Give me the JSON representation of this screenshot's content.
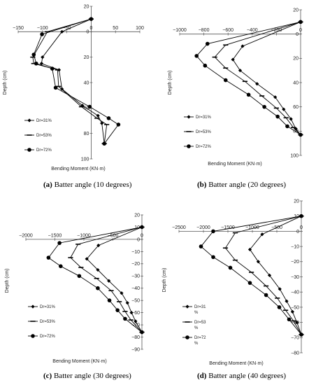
{
  "chart_data": [
    {
      "type": "line",
      "panel_letter": "(a)",
      "caption": "Batter angle (10 degrees)",
      "xlabel": "Bending Moment (KN·m)",
      "ylabel": "Depth (cm)",
      "xlim": [
        -150,
        100
      ],
      "ylim": [
        20,
        -100
      ],
      "xticks": [
        -150,
        -100,
        -50,
        0,
        50,
        100
      ],
      "yticks": [
        20,
        0,
        -20,
        -40,
        -60,
        -80,
        -100
      ],
      "xtick_labels": [
        "−150",
        "−100",
        "−50",
        "0",
        "50",
        "100"
      ],
      "ytick_labels": [
        "20",
        "0",
        "20",
        "40",
        "60",
        "80",
        "100"
      ],
      "legend_position": "bottom-left",
      "series": [
        {
          "name": "Dr=31%",
          "marker": "diamond",
          "x": [
            0,
            -60,
            -100,
            -102,
            -66,
            -60,
            -18,
            14,
            22,
            27
          ],
          "y": [
            10,
            0,
            -20,
            -25,
            -30,
            -45,
            -58,
            -66,
            -72,
            -88
          ]
        },
        {
          "name": "Dr=53%",
          "marker": "dash",
          "x": [
            0,
            -90,
            -120,
            -118,
            -69,
            -67,
            -20,
            12,
            32,
            27
          ],
          "y": [
            10,
            0,
            -20,
            -25,
            -30,
            -43,
            -59,
            -68,
            -73,
            -88
          ]
        },
        {
          "name": "Dr=72%",
          "marker": "circle",
          "x": [
            0,
            -101,
            -118,
            -113,
            -80,
            -73,
            -3,
            36,
            56,
            27
          ],
          "y": [
            10,
            -2,
            -18,
            -25,
            -29,
            -44,
            -59,
            -68,
            -73,
            -88
          ]
        }
      ]
    },
    {
      "type": "line",
      "panel_letter": "(b)",
      "caption": "Batter angle (20 degrees)",
      "xlabel": "Bending Moment (KN·m)",
      "ylabel": "Depth (cm)",
      "xlim": [
        -1000,
        0
      ],
      "ylim": [
        20,
        -100
      ],
      "xticks": [
        -1000,
        -800,
        -600,
        -400,
        -200,
        0
      ],
      "yticks": [
        20,
        0,
        -20,
        -40,
        -60,
        -80,
        -100
      ],
      "xtick_labels": [
        "−1000",
        "−800",
        "−600",
        "−400",
        "−200",
        "0"
      ],
      "ytick_labels": [
        "20",
        "0",
        "20",
        "40",
        "60",
        "80",
        "100"
      ],
      "legend_position": "bottom-left",
      "series": [
        {
          "name": "Dr=31%",
          "marker": "diamond",
          "x": [
            0,
            -480,
            -560,
            -500,
            -360,
            -210,
            -140,
            -80,
            -40,
            0
          ],
          "y": [
            10,
            -10,
            -21,
            -30,
            -41,
            -52,
            -62,
            -70,
            -78,
            -83
          ]
        },
        {
          "name": "Dr=53%",
          "marker": "dash",
          "x": [
            0,
            -620,
            -710,
            -620,
            -460,
            -320,
            -200,
            -120,
            -60,
            0
          ],
          "y": [
            10,
            -9,
            -19,
            -28,
            -39,
            -51,
            -61,
            -69,
            -77,
            -83
          ]
        },
        {
          "name": "Dr=72%",
          "marker": "circle",
          "x": [
            0,
            -770,
            -860,
            -790,
            -620,
            -430,
            -300,
            -190,
            -110,
            0
          ],
          "y": [
            10,
            -8,
            -18,
            -26,
            -38,
            -50,
            -60,
            -68,
            -76,
            -83
          ]
        }
      ]
    },
    {
      "type": "line",
      "panel_letter": "(c)",
      "caption": "Batter angle (30 degrees)",
      "xlabel": "Bending Moment (KN·m)",
      "ylabel": "Depth (cm)",
      "xlim": [
        -2000,
        0
      ],
      "ylim": [
        20,
        -90
      ],
      "xticks": [
        -2000,
        -1500,
        -1000,
        -500,
        0
      ],
      "yticks": [
        20,
        10,
        0,
        -10,
        -20,
        -30,
        -40,
        -50,
        -60,
        -70,
        -80,
        -90
      ],
      "xtick_labels": [
        "−2000",
        "−1500",
        "−1000",
        "−500",
        "0"
      ],
      "ytick_labels": [
        "20",
        "10",
        "0",
        "−10",
        "−20",
        "−30",
        "−40",
        "−50",
        "−60",
        "−70",
        "−80",
        "−90"
      ],
      "legend_position": "bottom-left",
      "series": [
        {
          "name": "Dr=31%",
          "marker": "diamond",
          "x": [
            0,
            -750,
            -950,
            -760,
            -570,
            -350,
            -250,
            -180,
            -110,
            0
          ],
          "y": [
            10,
            -5,
            -16,
            -25,
            -34,
            -44,
            -52,
            -60,
            -67,
            -76
          ]
        },
        {
          "name": "Dr=53%",
          "marker": "dash",
          "x": [
            0,
            -1100,
            -1230,
            -1050,
            -780,
            -530,
            -390,
            -290,
            -190,
            0
          ],
          "y": [
            10,
            -4,
            -15,
            -23,
            -32,
            -42,
            -51,
            -59,
            -66,
            -76
          ]
        },
        {
          "name": "Dr=72%",
          "marker": "circle",
          "x": [
            0,
            -1420,
            -1610,
            -1400,
            -1080,
            -760,
            -560,
            -420,
            -290,
            0
          ],
          "y": [
            10,
            -3,
            -15,
            -22,
            -30,
            -40,
            -50,
            -58,
            -65,
            -76
          ]
        }
      ]
    },
    {
      "type": "line",
      "panel_letter": "(d)",
      "caption": "Batter angle (40 degrees)",
      "xlabel": "Bending Moment (KN·m)",
      "ylabel": "Depth (cm)",
      "xlim": [
        -2500,
        0
      ],
      "ylim": [
        20,
        -80
      ],
      "xticks": [
        -2500,
        -2000,
        -1500,
        -1000,
        -500,
        0
      ],
      "yticks": [
        20,
        10,
        0,
        -10,
        -20,
        -30,
        -40,
        -50,
        -60,
        -70,
        -80
      ],
      "xtick_labels": [
        "−2500",
        "−2000",
        "−1500",
        "−1000",
        "−500",
        "0"
      ],
      "ytick_labels": [
        "20",
        "10",
        "0",
        "−10",
        "−20",
        "−30",
        "−40",
        "−50",
        "−60",
        "−70",
        "−80"
      ],
      "legend_position": "bottom-left",
      "series": [
        {
          "name": "Dr=31\n%",
          "marker": "diamond",
          "x": [
            0,
            -800,
            -1050,
            -880,
            -650,
            -440,
            -300,
            -180,
            -90,
            0
          ],
          "y": [
            10,
            -2,
            -12,
            -20,
            -29,
            -38,
            -46,
            -53,
            -60,
            -68
          ]
        },
        {
          "name": "Dr=53\n%",
          "marker": "dash",
          "x": [
            0,
            -1350,
            -1550,
            -1350,
            -1020,
            -720,
            -490,
            -320,
            -160,
            0
          ],
          "y": [
            10,
            -1,
            -11,
            -19,
            -27,
            -36,
            -44,
            -52,
            -59,
            -68
          ]
        },
        {
          "name": "Dr=72\n%",
          "marker": "circle",
          "x": [
            0,
            -1800,
            -2050,
            -1800,
            -1450,
            -1050,
            -720,
            -450,
            -250,
            0
          ],
          "y": [
            10,
            0,
            -10,
            -17,
            -24,
            -34,
            -42,
            -50,
            -58,
            -68
          ]
        }
      ]
    }
  ]
}
